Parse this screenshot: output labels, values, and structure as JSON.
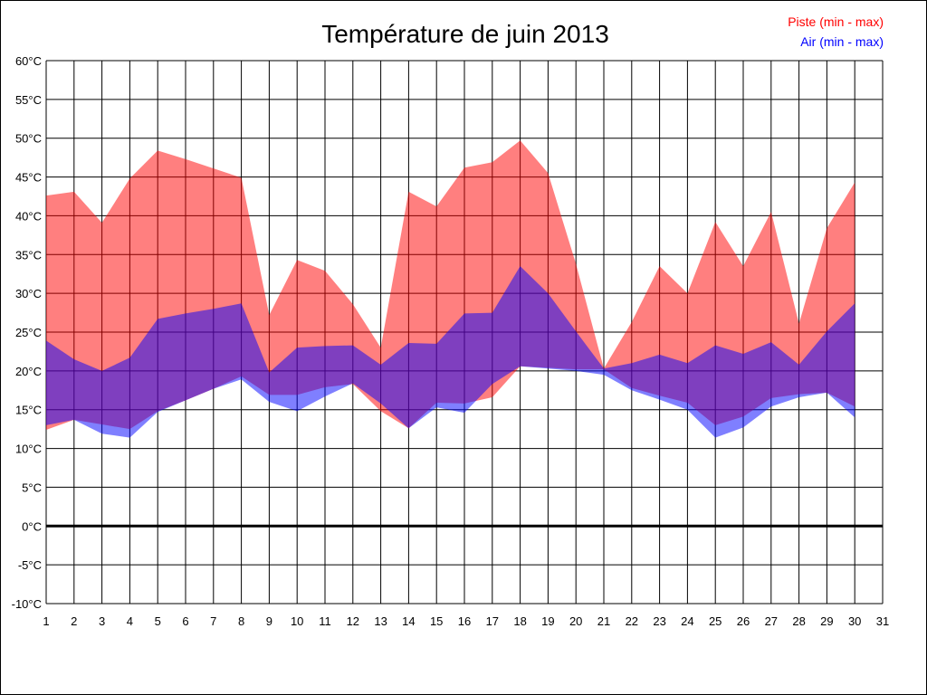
{
  "chart_data": {
    "type": "area",
    "title": "Température de juin 2013",
    "xlabel": "",
    "ylabel": "",
    "unit": "°C",
    "xlim": [
      1,
      31
    ],
    "ylim": [
      -10,
      60
    ],
    "y_ticks": [
      -10,
      -5,
      0,
      5,
      10,
      15,
      20,
      25,
      30,
      35,
      40,
      45,
      50,
      55,
      60
    ],
    "x_ticks": [
      1,
      2,
      3,
      4,
      5,
      6,
      7,
      8,
      9,
      10,
      11,
      12,
      13,
      14,
      15,
      16,
      17,
      18,
      19,
      20,
      21,
      22,
      23,
      24,
      25,
      26,
      27,
      28,
      29,
      30,
      31
    ],
    "grid": true,
    "legend_position": "top-right",
    "x": [
      1,
      2,
      3,
      4,
      5,
      6,
      7,
      8,
      9,
      10,
      11,
      12,
      13,
      14,
      15,
      16,
      17,
      18,
      19,
      20,
      21,
      22,
      23,
      24,
      25,
      26,
      27,
      28,
      29,
      30
    ],
    "series": [
      {
        "name": "Piste (min - max)",
        "color": "#ff0000",
        "min": [
          12.4,
          13.7,
          13.1,
          12.5,
          14.8,
          16.2,
          17.7,
          19.3,
          16.9,
          16.9,
          17.9,
          18.3,
          14.8,
          12.6,
          15.9,
          15.8,
          16.6,
          20.6,
          20.4,
          20.2,
          20.2,
          17.8,
          16.8,
          15.9,
          13.0,
          14.1,
          16.5,
          17.0,
          17.2,
          15.4
        ],
        "max": [
          42.6,
          43.1,
          39.1,
          44.8,
          48.4,
          47.3,
          46.1,
          44.9,
          27.2,
          34.3,
          32.9,
          28.6,
          23.0,
          43.1,
          41.2,
          46.2,
          46.9,
          49.7,
          45.5,
          33.8,
          20.3,
          26.3,
          33.5,
          30.0,
          39.2,
          33.5,
          40.5,
          26.1,
          38.4,
          44.3
        ]
      },
      {
        "name": "Air (min - max)",
        "color": "#0000ff",
        "min": [
          13.0,
          13.7,
          11.9,
          11.4,
          14.7,
          16.2,
          17.7,
          18.9,
          16.0,
          14.8,
          16.7,
          18.4,
          15.8,
          12.6,
          15.3,
          14.6,
          18.3,
          20.6,
          20.3,
          20.0,
          19.5,
          17.5,
          16.3,
          15.0,
          11.4,
          12.7,
          15.4,
          16.6,
          17.2,
          14.0
        ],
        "max": [
          23.9,
          21.5,
          20.0,
          21.7,
          26.7,
          27.4,
          28.0,
          28.7,
          19.8,
          23.0,
          23.2,
          23.3,
          20.8,
          23.6,
          23.5,
          27.4,
          27.5,
          33.5,
          30.0,
          25.1,
          20.3,
          21.0,
          22.1,
          21.0,
          23.3,
          22.2,
          23.7,
          20.8,
          25.1,
          28.7
        ]
      }
    ]
  }
}
